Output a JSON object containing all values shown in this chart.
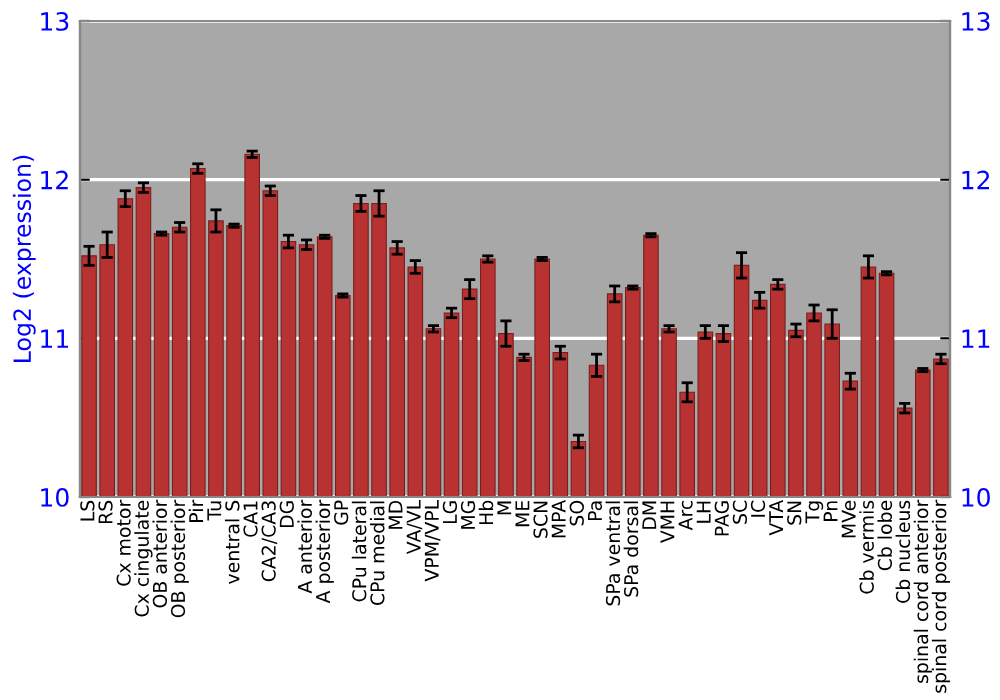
{
  "chart_data": {
    "type": "bar",
    "ylabel": "Log2 (expression)",
    "categories": [
      "LS",
      "RS",
      "Cx motor",
      "Cx cingulate",
      "OB anterior",
      "OB posterior",
      "Pir",
      "Tu",
      "ventral S",
      "CA1",
      "CA2/CA3",
      "DG",
      "A anterior",
      "A posterior",
      "GP",
      "CPu lateral",
      "CPu medial",
      "MD",
      "VA/VL",
      "VPM/VPL",
      "LG",
      "MG",
      "Hb",
      "M",
      "ME",
      "SCN",
      "MPA",
      "SO",
      "Pa",
      "SPa ventral",
      "SPa dorsal",
      "DM",
      "VMH",
      "Arc",
      "LH",
      "PAG",
      "SC",
      "IC",
      "VTA",
      "SN",
      "Tg",
      "Pn",
      "MVe",
      "Cb vermis",
      "Cb lobe",
      "Cb nucleus",
      "spinal cord anterior",
      "spinal cord posterior"
    ],
    "values": [
      11.52,
      11.59,
      11.88,
      11.95,
      11.66,
      11.7,
      12.07,
      11.74,
      11.71,
      12.16,
      11.93,
      11.61,
      11.59,
      11.64,
      11.27,
      11.85,
      11.85,
      11.57,
      11.45,
      11.06,
      11.16,
      11.31,
      11.5,
      11.03,
      10.88,
      11.5,
      10.91,
      10.35,
      10.83,
      11.28,
      11.32,
      11.65,
      11.06,
      10.66,
      11.04,
      11.03,
      11.46,
      11.24,
      11.34,
      11.05,
      11.16,
      11.09,
      10.73,
      11.45,
      11.41,
      10.56,
      10.8,
      10.87
    ],
    "errors": [
      0.06,
      0.08,
      0.05,
      0.03,
      0.01,
      0.03,
      0.03,
      0.07,
      0.01,
      0.02,
      0.03,
      0.04,
      0.03,
      0.01,
      0.01,
      0.05,
      0.08,
      0.04,
      0.04,
      0.02,
      0.03,
      0.06,
      0.02,
      0.08,
      0.02,
      0.01,
      0.04,
      0.04,
      0.07,
      0.05,
      0.01,
      0.01,
      0.02,
      0.06,
      0.04,
      0.05,
      0.08,
      0.05,
      0.03,
      0.04,
      0.05,
      0.09,
      0.05,
      0.07,
      0.01,
      0.03,
      0.01,
      0.03
    ],
    "color": "#b83232",
    "ylim": [
      10,
      13
    ],
    "yticks": [
      10,
      11,
      12,
      13
    ],
    "y2lim": [
      10,
      13
    ],
    "y2ticks": [
      10,
      11,
      12,
      13
    ],
    "grid": "y"
  }
}
